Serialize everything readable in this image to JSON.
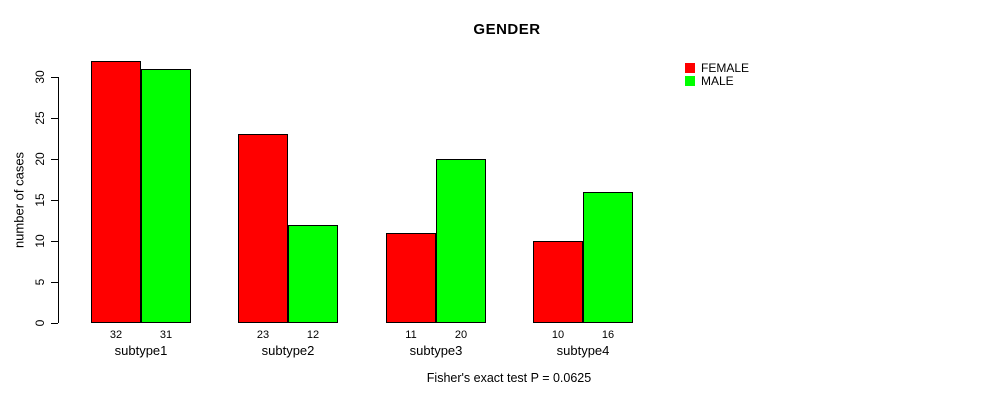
{
  "title": "GENDER",
  "footnote": "Fisher's exact test P = 0.0625",
  "legend": {
    "items": [
      {
        "label": "FEMALE",
        "color": "#FF0000"
      },
      {
        "label": "MALE",
        "color": "#00FF00"
      }
    ]
  },
  "chart_data": {
    "type": "bar",
    "title": "GENDER",
    "xlabel": "",
    "ylabel": "number of cases",
    "categories": [
      "subtype1",
      "subtype2",
      "subtype3",
      "subtype4"
    ],
    "series": [
      {
        "name": "FEMALE",
        "color": "#FF0000",
        "values": [
          32,
          23,
          11,
          10
        ]
      },
      {
        "name": "MALE",
        "color": "#00FF00",
        "values": [
          31,
          12,
          20,
          16
        ]
      }
    ],
    "ylim": [
      0,
      30
    ],
    "yticks": [
      0,
      5,
      10,
      15,
      20,
      25,
      30
    ],
    "bar_value_labels_shown": true,
    "legend_position": "right",
    "grid": false,
    "annotation": "Fisher's exact test P = 0.0625",
    "bar_border_color": "#000000",
    "axis_color": "#000000"
  }
}
